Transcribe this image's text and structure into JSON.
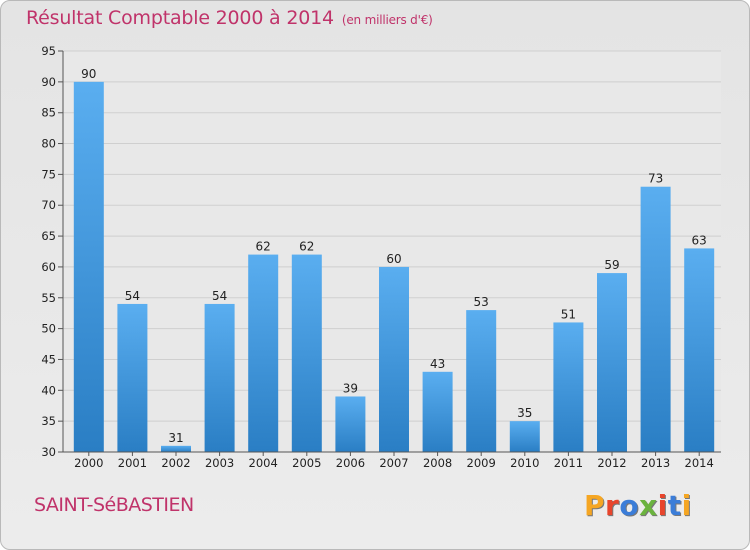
{
  "chart_data": {
    "type": "bar",
    "title": "Résultat Comptable 2000 à 2014",
    "subtitle": "(en milliers d'€)",
    "categories": [
      "2000",
      "2001",
      "2002",
      "2003",
      "2004",
      "2005",
      "2006",
      "2007",
      "2008",
      "2009",
      "2010",
      "2011",
      "2012",
      "2013",
      "2014"
    ],
    "values": [
      90,
      54,
      31,
      54,
      62,
      62,
      39,
      60,
      43,
      53,
      35,
      51,
      59,
      73,
      63
    ],
    "ylim": [
      30,
      95
    ],
    "yticks": [
      30,
      35,
      40,
      45,
      50,
      55,
      60,
      65,
      70,
      75,
      80,
      85,
      90,
      95
    ],
    "grid": true,
    "bar_color_top": "#5aaef0",
    "bar_color_bottom": "#2a7ec4"
  },
  "footer": {
    "town": "SAINT-SéBASTIEN",
    "logo": "Proxiti"
  },
  "logo_colors": [
    "#f5a623",
    "#e8452c",
    "#3b7dd8",
    "#6bb33e",
    "#e8452c",
    "#3b7dd8",
    "#f5a623"
  ]
}
